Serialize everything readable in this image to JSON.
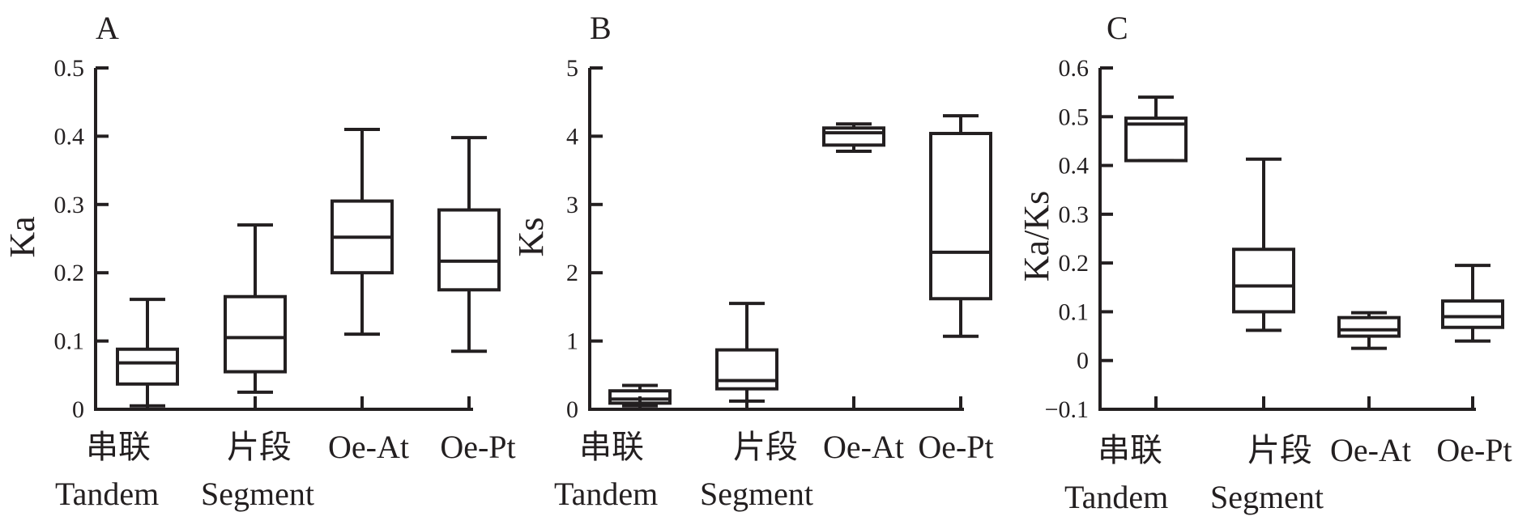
{
  "chart_data": [
    {
      "type": "box",
      "panel": "A",
      "ylabel": "Ka",
      "xlabel": "",
      "ylim": [
        0,
        0.5
      ],
      "yticks": [
        "0",
        "0.1",
        "0.2",
        "0.3",
        "0.4",
        "0.5"
      ],
      "categories": [
        "串联",
        "片段",
        "Oe-At",
        "Oe-Pt"
      ],
      "group_labels": [
        "Tandem",
        "Segment"
      ],
      "boxes": [
        {
          "min": 0.005,
          "q1": 0.037,
          "median": 0.068,
          "q3": 0.088,
          "max": 0.161
        },
        {
          "min": 0.025,
          "q1": 0.055,
          "median": 0.105,
          "q3": 0.165,
          "max": 0.27
        },
        {
          "min": 0.11,
          "q1": 0.2,
          "median": 0.252,
          "q3": 0.305,
          "max": 0.41
        },
        {
          "min": 0.085,
          "q1": 0.175,
          "median": 0.217,
          "q3": 0.292,
          "max": 0.398
        }
      ]
    },
    {
      "type": "box",
      "panel": "B",
      "ylabel": "Ks",
      "xlabel": "",
      "ylim": [
        0,
        5
      ],
      "yticks": [
        "0",
        "1",
        "2",
        "3",
        "4",
        "5"
      ],
      "categories": [
        "串联",
        "片段",
        "Oe-At",
        "Oe-Pt"
      ],
      "group_labels": [
        "Tandem",
        "Segment"
      ],
      "boxes": [
        {
          "min": 0.05,
          "q1": 0.09,
          "median": 0.15,
          "q3": 0.27,
          "max": 0.35
        },
        {
          "min": 0.12,
          "q1": 0.3,
          "median": 0.42,
          "q3": 0.87,
          "max": 1.55
        },
        {
          "min": 3.78,
          "q1": 3.87,
          "median": 4.05,
          "q3": 4.12,
          "max": 4.18
        },
        {
          "min": 1.07,
          "q1": 1.62,
          "median": 2.3,
          "q3": 4.04,
          "max": 4.3
        }
      ]
    },
    {
      "type": "box",
      "panel": "C",
      "ylabel": "Ka/Ks",
      "xlabel": "",
      "ylim": [
        -0.1,
        0.6
      ],
      "yticks": [
        "−0.1",
        "0",
        "0.1",
        "0.2",
        "0.3",
        "0.4",
        "0.5",
        "0.6"
      ],
      "categories": [
        "串联",
        "片段",
        "Oe-At",
        "Oe-Pt"
      ],
      "group_labels": [
        "Tandem",
        "Segment"
      ],
      "boxes": [
        {
          "min": 0.41,
          "q1": 0.41,
          "median": 0.485,
          "q3": 0.497,
          "max": 0.54
        },
        {
          "min": 0.062,
          "q1": 0.1,
          "median": 0.153,
          "q3": 0.228,
          "max": 0.413
        },
        {
          "min": 0.025,
          "q1": 0.05,
          "median": 0.063,
          "q3": 0.088,
          "max": 0.098
        },
        {
          "min": 0.04,
          "q1": 0.068,
          "median": 0.09,
          "q3": 0.122,
          "max": 0.195
        }
      ]
    }
  ]
}
